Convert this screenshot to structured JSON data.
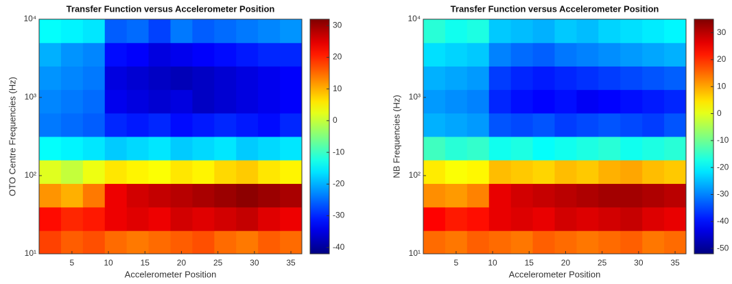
{
  "chart_data": [
    {
      "type": "heatmap",
      "title": "Transfer Function versus Accelerometer Position",
      "x_label": "Accelerometer Position",
      "y_label": "OTO Centre Frequencies (Hz)",
      "x": [
        2,
        5,
        8,
        11,
        14,
        17,
        20,
        23,
        26,
        29,
        32,
        35
      ],
      "y": [
        14,
        28,
        56,
        112,
        224,
        447,
        891,
        1778,
        3548,
        7079
      ],
      "z": [
        [
          18,
          16,
          17,
          15,
          14,
          15,
          16,
          17,
          15,
          14,
          16,
          15
        ],
        [
          22,
          20,
          21,
          24,
          25,
          24,
          26,
          25,
          26,
          27,
          25,
          24
        ],
        [
          12,
          10,
          14,
          24,
          26,
          27,
          28,
          29,
          30,
          31,
          30,
          29
        ],
        [
          2,
          0,
          3,
          6,
          5,
          4,
          6,
          5,
          7,
          8,
          6,
          5
        ],
        [
          -14,
          -15,
          -16,
          -18,
          -17,
          -16,
          -18,
          -17,
          -16,
          -18,
          -17,
          -16
        ],
        [
          -24,
          -25,
          -26,
          -30,
          -31,
          -30,
          -32,
          -31,
          -30,
          -31,
          -32,
          -30
        ],
        [
          -23,
          -24,
          -25,
          -34,
          -35,
          -36,
          -35,
          -37,
          -36,
          -35,
          -34,
          -33
        ],
        [
          -22,
          -23,
          -24,
          -35,
          -36,
          -37,
          -38,
          -37,
          -36,
          -35,
          -34,
          -33
        ],
        [
          -20,
          -22,
          -23,
          -32,
          -33,
          -35,
          -34,
          -33,
          -32,
          -31,
          -30,
          -30
        ],
        [
          -14,
          -15,
          -16,
          -26,
          -25,
          -28,
          -24,
          -26,
          -25,
          -24,
          -23,
          -22
        ]
      ],
      "xlim": [
        0.5,
        36.5
      ],
      "xticks": [
        5,
        10,
        15,
        20,
        25,
        30,
        35
      ],
      "ylim": [
        10,
        10000
      ],
      "y_scale": "log",
      "yticks": [
        {
          "value": 10,
          "label": "10¹"
        },
        {
          "value": 100,
          "label": "10²"
        },
        {
          "value": 1000,
          "label": "10³"
        },
        {
          "value": 10000,
          "label": "10⁴"
        }
      ],
      "colormap": "jet",
      "clim": [
        -42,
        32
      ],
      "cticks": [
        -40,
        -30,
        -20,
        -10,
        0,
        10,
        20,
        30
      ]
    },
    {
      "type": "heatmap",
      "title": "Transfer Function versus Accelerometer Position",
      "x_label": "Accelerometer Position",
      "y_label": "NB Frequencies (Hz)",
      "x": [
        2,
        5,
        8,
        11,
        14,
        17,
        20,
        23,
        26,
        29,
        32,
        35
      ],
      "y": [
        14,
        28,
        56,
        112,
        224,
        447,
        891,
        1778,
        3548,
        7079
      ],
      "z": [
        [
          15,
          14,
          16,
          15,
          14,
          16,
          15,
          14,
          15,
          16,
          14,
          15
        ],
        [
          24,
          22,
          23,
          26,
          27,
          26,
          28,
          27,
          28,
          29,
          27,
          26
        ],
        [
          12,
          11,
          13,
          26,
          28,
          29,
          30,
          31,
          32,
          32,
          31,
          30
        ],
        [
          4,
          2,
          3,
          8,
          7,
          6,
          8,
          7,
          9,
          10,
          8,
          7
        ],
        [
          -14,
          -16,
          -15,
          -18,
          -17,
          -19,
          -18,
          -17,
          -16,
          -18,
          -17,
          -16
        ],
        [
          -26,
          -27,
          -28,
          -34,
          -35,
          -34,
          -36,
          -35,
          -34,
          -35,
          -36,
          -34
        ],
        [
          -28,
          -29,
          -30,
          -38,
          -40,
          -41,
          -40,
          -42,
          -41,
          -40,
          -39,
          -38
        ],
        [
          -26,
          -27,
          -28,
          -36,
          -38,
          -39,
          -38,
          -37,
          -36,
          -35,
          -34,
          -33
        ],
        [
          -22,
          -23,
          -24,
          -30,
          -32,
          -33,
          -31,
          -30,
          -29,
          -28,
          -27,
          -26
        ],
        [
          -16,
          -18,
          -17,
          -24,
          -25,
          -26,
          -24,
          -25,
          -23,
          -22,
          -21,
          -20
        ]
      ],
      "xlim": [
        0.5,
        36.5
      ],
      "xticks": [
        5,
        10,
        15,
        20,
        25,
        30,
        35
      ],
      "ylim": [
        10,
        10000
      ],
      "y_scale": "log",
      "yticks": [
        {
          "value": 10,
          "label": "10¹"
        },
        {
          "value": 100,
          "label": "10²"
        },
        {
          "value": 1000,
          "label": "10³"
        },
        {
          "value": 10000,
          "label": "10⁴"
        }
      ],
      "colormap": "jet",
      "clim": [
        -52,
        35
      ],
      "cticks": [
        -50,
        -40,
        -30,
        -20,
        -10,
        0,
        10,
        20,
        30
      ]
    }
  ]
}
